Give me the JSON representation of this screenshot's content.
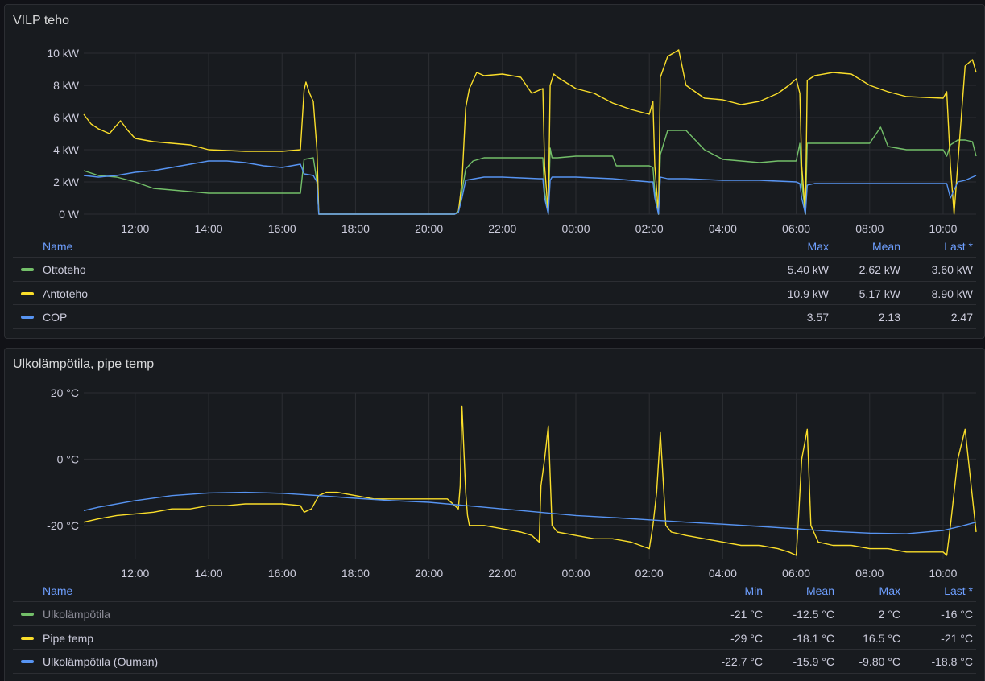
{
  "colors": {
    "green": "#73bf69",
    "yellow": "#fade2a",
    "blue": "#5794f2"
  },
  "panels": [
    {
      "title": "VILP teho",
      "legend": {
        "name_header": "Name",
        "columns": [
          "Max",
          "Mean",
          "Last *"
        ],
        "rows": [
          {
            "name": "Ottoteho",
            "color": "#73bf69",
            "values": [
              "5.40 kW",
              "2.62 kW",
              "3.60 kW"
            ],
            "dim": false
          },
          {
            "name": "Antoteho",
            "color": "#fade2a",
            "values": [
              "10.9 kW",
              "5.17 kW",
              "8.90 kW"
            ],
            "dim": false
          },
          {
            "name": "COP",
            "color": "#5794f2",
            "values": [
              "3.57",
              "2.13",
              "2.47"
            ],
            "dim": false
          }
        ]
      }
    },
    {
      "title": "Ulkolämpötila, pipe temp",
      "legend": {
        "name_header": "Name",
        "columns": [
          "Min",
          "Mean",
          "Max",
          "Last *"
        ],
        "rows": [
          {
            "name": "Ulkolämpötila",
            "color": "#73bf69",
            "values": [
              "-21 °C",
              "-12.5 °C",
              "2 °C",
              "-16 °C"
            ],
            "dim": true
          },
          {
            "name": "Pipe temp",
            "color": "#fade2a",
            "values": [
              "-29 °C",
              "-18.1 °C",
              "16.5 °C",
              "-21 °C"
            ],
            "dim": false
          },
          {
            "name": "Ulkolämpötila (Ouman)",
            "color": "#5794f2",
            "values": [
              "-22.7 °C",
              "-15.9 °C",
              "-9.80 °C",
              "-18.8 °C"
            ],
            "dim": false
          }
        ]
      }
    }
  ],
  "chart_data": [
    {
      "type": "line",
      "title": "VILP teho",
      "x_unit": "hours since 00:00 of day 1",
      "xlim": [
        10.6,
        34.9
      ],
      "x_ticks": [
        12,
        14,
        16,
        18,
        20,
        22,
        24,
        26,
        28,
        30,
        32,
        34
      ],
      "x_tick_labels": [
        "12:00",
        "14:00",
        "16:00",
        "18:00",
        "20:00",
        "22:00",
        "00:00",
        "02:00",
        "04:00",
        "06:00",
        "08:00",
        "10:00"
      ],
      "ylim": [
        0,
        10
      ],
      "y_ticks": [
        0,
        2,
        4,
        6,
        8,
        10
      ],
      "y_tick_labels": [
        "0 W",
        "2 kW",
        "4 kW",
        "6 kW",
        "8 kW",
        "10 kW"
      ],
      "series": [
        {
          "name": "Ottoteho",
          "color": "#73bf69",
          "x": [
            10.6,
            11,
            11.5,
            12,
            12.5,
            13,
            14,
            15,
            16,
            16.5,
            16.6,
            16.85,
            16.95,
            17,
            20.7,
            20.8,
            20.9,
            21,
            21.2,
            21.5,
            22,
            23,
            23.1,
            23.15,
            23.25,
            23.3,
            23.35,
            23.5,
            24,
            25,
            25.1,
            25.5,
            26,
            26.1,
            26.15,
            26.25,
            26.3,
            26.5,
            27,
            27.5,
            28,
            29,
            29,
            29.5,
            30,
            30.1,
            30.15,
            30.25,
            30.3,
            30.5,
            31,
            32,
            32.3,
            32.5,
            33,
            34,
            34.1,
            34.2,
            34.4,
            34.6,
            34.8,
            34.9
          ],
          "y": [
            2.7,
            2.4,
            2.3,
            2.0,
            1.6,
            1.5,
            1.3,
            1.3,
            1.3,
            1.3,
            3.4,
            3.5,
            2.0,
            0,
            0,
            0.2,
            1.4,
            2.8,
            3.3,
            3.5,
            3.5,
            3.5,
            3.5,
            1.4,
            0,
            4.1,
            3.5,
            3.5,
            3.6,
            3.6,
            3.0,
            3.0,
            3.0,
            2.9,
            1.4,
            0,
            3.7,
            5.2,
            5.2,
            4.0,
            3.4,
            3.2,
            3.2,
            3.3,
            3.3,
            4.4,
            2.0,
            0,
            4.4,
            4.4,
            4.4,
            4.4,
            5.4,
            4.2,
            4.0,
            4.0,
            3.6,
            4.3,
            4.6,
            4.6,
            4.5,
            3.6
          ]
        },
        {
          "name": "Antoteho",
          "color": "#fade2a",
          "x": [
            10.6,
            10.8,
            11,
            11.3,
            11.6,
            11.8,
            12,
            12.5,
            13,
            13.5,
            14,
            15,
            16,
            16.5,
            16.6,
            16.65,
            16.75,
            16.85,
            16.95,
            17,
            20.7,
            20.8,
            20.9,
            21,
            21.1,
            21.3,
            21.5,
            22,
            22.5,
            22.8,
            23.1,
            23.15,
            23.25,
            23.3,
            23.4,
            23.5,
            24,
            24.5,
            25,
            25.5,
            26,
            26.1,
            26.15,
            26.25,
            26.3,
            26.5,
            26.8,
            27,
            27.5,
            28,
            28.5,
            29,
            29.5,
            29.8,
            30,
            30.1,
            30.15,
            30.25,
            30.3,
            30.5,
            31,
            31.5,
            32,
            32.5,
            33,
            34,
            34.1,
            34.2,
            34.3,
            34.6,
            34.8,
            34.9
          ],
          "y": [
            6.2,
            5.6,
            5.3,
            5.0,
            5.8,
            5.2,
            4.7,
            4.5,
            4.4,
            4.3,
            4.0,
            3.9,
            3.9,
            4.0,
            7.7,
            8.2,
            7.5,
            7.0,
            4.0,
            0,
            0,
            0.1,
            2.0,
            6.6,
            7.8,
            8.8,
            8.6,
            8.7,
            8.5,
            7.5,
            7.8,
            3.0,
            0,
            8.0,
            8.7,
            8.5,
            7.8,
            7.5,
            6.9,
            6.5,
            6.2,
            7.0,
            3.0,
            0,
            8.5,
            9.8,
            10.2,
            8.0,
            7.2,
            7.1,
            6.8,
            7.0,
            7.5,
            8.0,
            8.4,
            7.5,
            3.0,
            0,
            8.3,
            8.6,
            8.8,
            8.7,
            8.0,
            7.6,
            7.3,
            7.2,
            7.6,
            3.0,
            0,
            9.2,
            9.6,
            8.8
          ]
        },
        {
          "name": "COP",
          "color": "#5794f2",
          "x": [
            10.6,
            11,
            11.5,
            12,
            12.5,
            13,
            13.5,
            14,
            14.5,
            15,
            15.5,
            16,
            16.5,
            16.6,
            16.85,
            16.95,
            17,
            20.7,
            20.8,
            20.9,
            21,
            21.5,
            22,
            23,
            23.1,
            23.15,
            23.25,
            23.3,
            23.35,
            24,
            25,
            26,
            26.1,
            26.15,
            26.25,
            26.3,
            26.5,
            27,
            28,
            29,
            30,
            30.1,
            30.15,
            30.25,
            30.3,
            30.5,
            31,
            32,
            33,
            34,
            34.1,
            34.2,
            34.4,
            34.6,
            34.9
          ],
          "y": [
            2.4,
            2.3,
            2.4,
            2.6,
            2.7,
            2.9,
            3.1,
            3.3,
            3.3,
            3.2,
            3.0,
            2.9,
            3.1,
            2.5,
            2.4,
            2.0,
            0,
            0,
            0.1,
            1.0,
            2.1,
            2.3,
            2.3,
            2.2,
            2.2,
            1.0,
            0,
            2.1,
            2.3,
            2.3,
            2.2,
            2.0,
            2.0,
            1.0,
            0,
            2.3,
            2.2,
            2.2,
            2.1,
            2.1,
            2.0,
            1.9,
            1.0,
            0,
            1.8,
            1.9,
            1.9,
            1.9,
            1.9,
            1.9,
            1.9,
            1.0,
            2.0,
            2.1,
            2.4
          ]
        }
      ]
    },
    {
      "type": "line",
      "title": "Ulkolämpötila, pipe temp",
      "x_unit": "hours since 00:00 of day 1",
      "xlim": [
        10.6,
        34.9
      ],
      "x_ticks": [
        12,
        14,
        16,
        18,
        20,
        22,
        24,
        26,
        28,
        30,
        32,
        34
      ],
      "x_tick_labels": [
        "12:00",
        "14:00",
        "16:00",
        "18:00",
        "20:00",
        "22:00",
        "00:00",
        "02:00",
        "04:00",
        "06:00",
        "08:00",
        "10:00"
      ],
      "ylim": [
        -30,
        20
      ],
      "y_ticks": [
        -20,
        0,
        20
      ],
      "y_tick_labels": [
        "-20 °C",
        "0 °C",
        "20 °C"
      ],
      "series": [
        {
          "name": "Pipe temp",
          "color": "#fade2a",
          "x": [
            10.6,
            11,
            11.5,
            12,
            12.5,
            13,
            13.5,
            14,
            14.5,
            15,
            15.5,
            16,
            16.5,
            16.6,
            16.8,
            17,
            17.2,
            17.5,
            18,
            18.5,
            19,
            19.5,
            20,
            20.5,
            20.8,
            20.85,
            20.9,
            21,
            21.05,
            21.1,
            21.5,
            22,
            22.5,
            22.8,
            23,
            23.05,
            23.15,
            23.25,
            23.35,
            23.5,
            24,
            24.5,
            25,
            25.5,
            26,
            26.1,
            26.2,
            26.3,
            26.45,
            26.6,
            27,
            27.5,
            28,
            28.5,
            29,
            29.5,
            29.8,
            30,
            30.05,
            30.15,
            30.3,
            30.4,
            30.6,
            31,
            31.5,
            32,
            32.5,
            33,
            33.5,
            34,
            34.1,
            34.2,
            34.4,
            34.6,
            34.9
          ],
          "y": [
            -19,
            -18,
            -17,
            -16.5,
            -16,
            -15,
            -15,
            -14,
            -14,
            -13.5,
            -13.5,
            -13.5,
            -14,
            -16,
            -15,
            -11,
            -10,
            -10,
            -11,
            -12,
            -12,
            -12,
            -12,
            -12,
            -15,
            -8,
            16,
            -10,
            -17,
            -20,
            -20,
            -21,
            -22,
            -23,
            -25,
            -8,
            0,
            10,
            -20,
            -22,
            -23,
            -24,
            -24,
            -25,
            -27,
            -20,
            -10,
            8,
            -20,
            -22,
            -23,
            -24,
            -25,
            -26,
            -26,
            -27,
            -28,
            -29,
            -20,
            0,
            9,
            -20,
            -25,
            -26,
            -26,
            -27,
            -27,
            -28,
            -28,
            -28,
            -29,
            -20,
            0,
            9,
            -22
          ]
        },
        {
          "name": "Ulkolämpötila (Ouman)",
          "color": "#5794f2",
          "x": [
            10.6,
            11,
            12,
            13,
            14,
            15,
            16,
            17,
            18,
            19,
            20,
            21,
            22,
            23,
            24,
            25,
            26,
            27,
            28,
            29,
            30,
            31,
            32,
            33,
            34,
            34.5,
            34.9
          ],
          "y": [
            -15.5,
            -14.5,
            -12.5,
            -11,
            -10.2,
            -10,
            -10.3,
            -11,
            -11.8,
            -12.5,
            -13,
            -14,
            -15,
            -16,
            -17,
            -17.6,
            -18.3,
            -19,
            -19.6,
            -20.3,
            -21,
            -21.8,
            -22.3,
            -22.5,
            -21.5,
            -20.2,
            -19
          ]
        }
      ]
    }
  ]
}
